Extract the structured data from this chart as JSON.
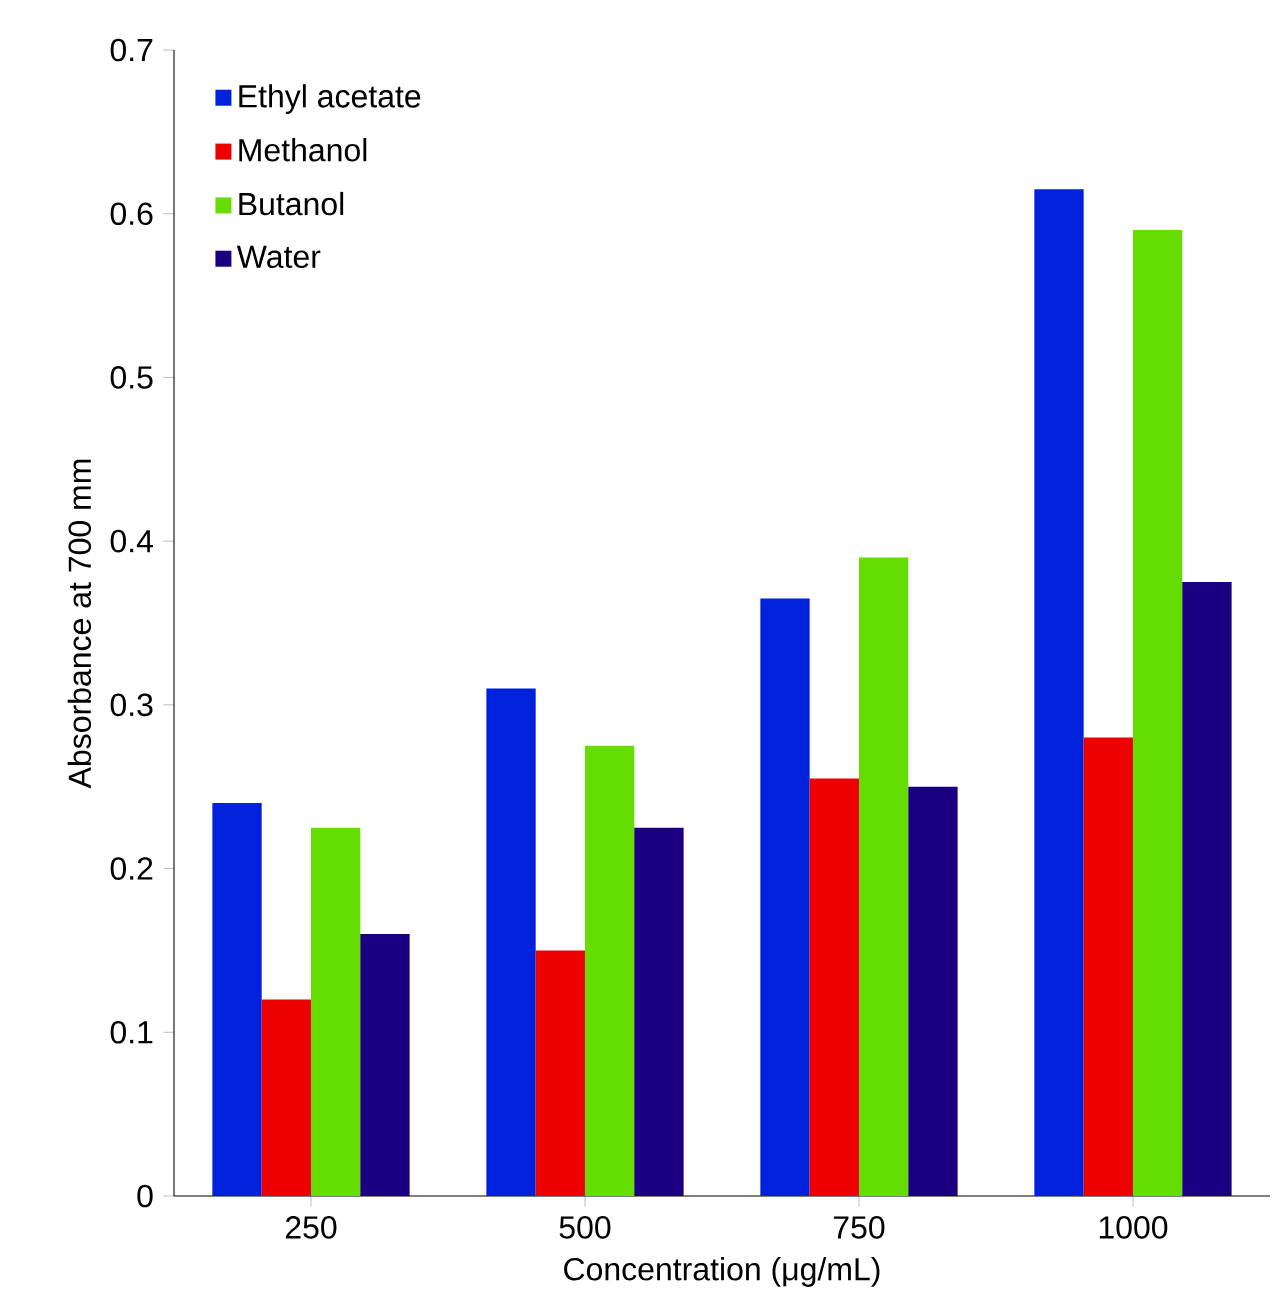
{
  "chart_data": {
    "type": "bar",
    "xlabel": "Concentration (μg/mL)",
    "ylabel": "Absorbance at 700 mm",
    "categories": [
      "250",
      "500",
      "750",
      "1000"
    ],
    "series": [
      {
        "name": "Ethyl acetate",
        "color": "#0022dd",
        "values": [
          0.24,
          0.31,
          0.365,
          0.615
        ]
      },
      {
        "name": "Methanol",
        "color": "#ee0000",
        "values": [
          0.12,
          0.15,
          0.255,
          0.28
        ]
      },
      {
        "name": "Butanol",
        "color": "#66dd00",
        "values": [
          0.225,
          0.275,
          0.39,
          0.59
        ]
      },
      {
        "name": "Water",
        "color": "#1a0080",
        "values": [
          0.16,
          0.225,
          0.25,
          0.375
        ]
      }
    ],
    "ylim": [
      0,
      0.7
    ],
    "yticks": [
      0,
      0.1,
      0.2,
      0.3,
      0.4,
      0.5,
      0.6,
      0.7
    ],
    "legend": "top left",
    "grid": false
  }
}
